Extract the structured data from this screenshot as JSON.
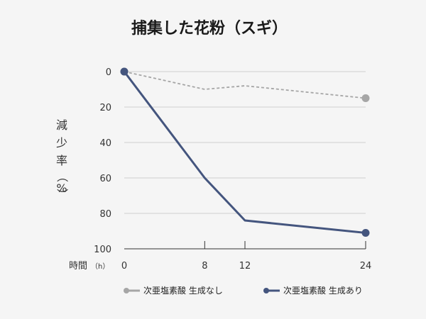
{
  "chart_data": {
    "type": "line",
    "title": "捕集した花粉（スギ）",
    "ylabel_chars": [
      "減",
      "少",
      "率",
      "（",
      "%",
      "）"
    ],
    "xlabel": "時間",
    "xlabel_unit": "（h）",
    "x": [
      0,
      8,
      12,
      24
    ],
    "x_ticks": [
      "0",
      "8",
      "12",
      "24"
    ],
    "xlim": [
      0,
      24
    ],
    "y_ticks": [
      "0",
      "20",
      "40",
      "60",
      "80",
      "100"
    ],
    "ylim": [
      0,
      100
    ],
    "y_inverted": true,
    "grid": true,
    "legend_position": "bottom",
    "series": [
      {
        "name": "次亜塩素酸 生成なし",
        "values": [
          0,
          10,
          8,
          15
        ],
        "color": "#a6a6a6",
        "style": "dashed"
      },
      {
        "name": "次亜塩素酸 生成あり",
        "values": [
          0,
          60,
          84,
          91
        ],
        "color": "#44557e",
        "style": "solid"
      }
    ]
  }
}
